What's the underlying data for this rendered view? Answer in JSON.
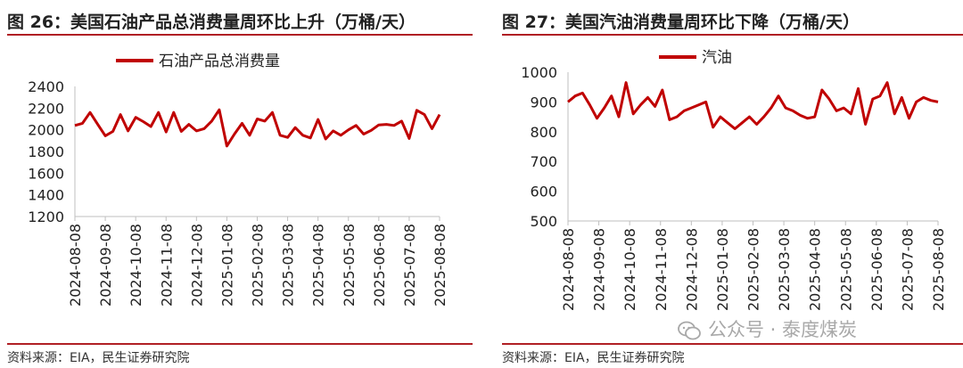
{
  "panels": [
    {
      "title": "图 26：美国石油产品总消费量周环比上升（万桶/天）",
      "source": "资料来源：EIA，民生证券研究院",
      "chart_data": {
        "type": "line",
        "title": "美国石油产品总消费量周环比上升（万桶/天）",
        "series": [
          {
            "name": "石油产品总消费量",
            "color": "#c00000",
            "values": [
              2040,
              2060,
              2160,
              2050,
              1945,
              1985,
              2140,
              1990,
              2115,
              2075,
              2030,
              2160,
              1980,
              2160,
              1985,
              2050,
              1990,
              2010,
              2080,
              2185,
              1850,
              1960,
              2060,
              1950,
              2100,
              2080,
              2160,
              1950,
              1930,
              2020,
              1950,
              1925,
              2095,
              1915,
              1990,
              1950,
              2000,
              2040,
              1960,
              1995,
              2045,
              2050,
              2040,
              2080,
              1920,
              2180,
              2140,
              2010,
              2140
            ]
          }
        ],
        "x_ticks": [
          "2024-08-08",
          "2024-09-08",
          "2024-10-08",
          "2024-11-08",
          "2024-12-08",
          "2025-01-08",
          "2025-02-08",
          "2025-03-08",
          "2025-04-08",
          "2025-05-08",
          "2025-06-08",
          "2025-07-08",
          "2025-08-08"
        ],
        "ylim": [
          1200,
          2400
        ],
        "y_ticks": [
          1200,
          1400,
          1600,
          1800,
          2000,
          2200,
          2400
        ],
        "legend": "top-center",
        "grid": false
      }
    },
    {
      "title": "图 27：美国汽油消费量周环比下降（万桶/天）",
      "source": "资料来源：EIA，民生证券研究院",
      "chart_data": {
        "type": "line",
        "title": "美国汽油消费量周环比下降（万桶/天）",
        "series": [
          {
            "name": "汽油",
            "color": "#c00000",
            "values": [
              900,
              920,
              930,
              890,
              845,
              880,
              920,
              850,
              965,
              860,
              890,
              915,
              885,
              940,
              840,
              850,
              870,
              880,
              890,
              900,
              815,
              850,
              830,
              810,
              830,
              850,
              825,
              850,
              880,
              920,
              880,
              870,
              855,
              845,
              850,
              940,
              910,
              870,
              880,
              860,
              945,
              825,
              910,
              920,
              965,
              860,
              915,
              845,
              900,
              915,
              905,
              900
            ]
          }
        ],
        "x_ticks": [
          "2024-08-08",
          "2024-09-08",
          "2024-10-08",
          "2024-11-08",
          "2024-12-08",
          "2025-01-08",
          "2025-02-08",
          "2025-03-08",
          "2025-04-08",
          "2025-05-08",
          "2025-06-08",
          "2025-07-08",
          "2025-08-08"
        ],
        "ylim": [
          500,
          1000
        ],
        "y_ticks": [
          500,
          600,
          700,
          800,
          900,
          1000
        ],
        "legend": "top-center",
        "grid": false
      }
    }
  ],
  "watermark": {
    "text": "公众号 · 泰度煤炭",
    "icon": "wechat-icon"
  }
}
